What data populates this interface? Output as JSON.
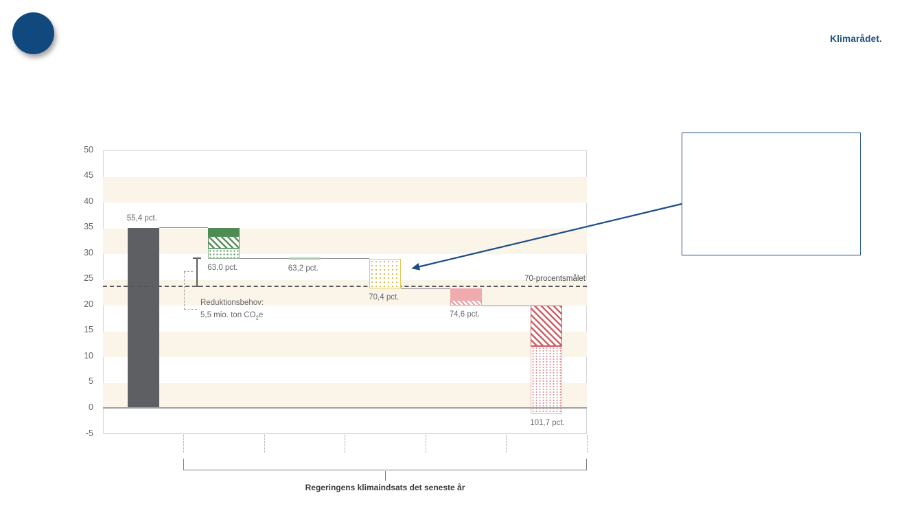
{
  "brand": {
    "wordmark": "Klimarådet.",
    "logo": "circle-icon"
  },
  "colors": {
    "brand_navy": "#1c4d85",
    "logo_fill": "#11497e",
    "band_cream": "#faf4e9",
    "bar_gray": "#5e5f63",
    "green": "#4e8c53",
    "light_green": "#a7cba8",
    "yellow": "#e4c94f",
    "pink": "#f0abae",
    "red": "#c75d64",
    "target_dash": "#565656",
    "zero_line": "#9aa2ac",
    "axis_text": "#63666b",
    "label_text": "#68696b"
  },
  "chart_data": {
    "type": "waterfall",
    "unit": "mio. ton CO2e (y-axis), pct. (labels)",
    "y_axis": {
      "min": -5,
      "max": 50,
      "step": 5,
      "tick_labels": [
        "50",
        "45",
        "40",
        "35",
        "30",
        "25",
        "20",
        "15",
        "10",
        "5",
        "0",
        "-5"
      ]
    },
    "values_pct": [
      55.4,
      63.0,
      63.2,
      70.4,
      74.6,
      101.7
    ],
    "bars": [
      {
        "value_label": "55,4 pct.",
        "label_position": "above",
        "segments": [
          {
            "from": 0,
            "to": 35,
            "style": "solid-gray"
          }
        ]
      },
      {
        "value_label": "63,0 pct.",
        "label_position": "below",
        "segments": [
          {
            "from": 35,
            "to": 33.4,
            "style": "solid-green"
          },
          {
            "from": 33.4,
            "to": 30.9,
            "style": "hatch-green"
          },
          {
            "from": 30.9,
            "to": 29,
            "style": "dots-green"
          }
        ]
      },
      {
        "value_label": "63,2 pct.",
        "label_position": "below",
        "segments": [
          {
            "from": 29.2,
            "to": 28.8,
            "style": "solid-lightgreen"
          }
        ]
      },
      {
        "value_label": "70,4 pct.",
        "label_position": "below",
        "segments": [
          {
            "from": 28.9,
            "to": 23.2,
            "style": "dots-yellow"
          }
        ]
      },
      {
        "value_label": "74,6 pct.",
        "label_position": "below",
        "segments": [
          {
            "from": 23.2,
            "to": 20.9,
            "style": "solid-pink"
          },
          {
            "from": 20.9,
            "to": 19.9,
            "style": "hatch-pink"
          }
        ]
      },
      {
        "value_label": "101,7 pct.",
        "label_position": "below",
        "segments": [
          {
            "from": 19.9,
            "to": 12,
            "style": "hatch-red"
          },
          {
            "from": 12,
            "to": -1.2,
            "style": "dots-red"
          }
        ]
      }
    ],
    "connectors": [
      {
        "level": 35,
        "from_bar": 0,
        "to_bar": 1
      },
      {
        "level": 29,
        "from_bar": 1,
        "to_bar": 3
      },
      {
        "level": 23.2,
        "from_bar": 3,
        "to_bar": 4
      },
      {
        "level": 19.9,
        "from_bar": 4,
        "to_bar": 5
      }
    ],
    "target_line": {
      "value": 23.5,
      "label": "70-procentsmålet"
    },
    "reduction_need": {
      "bracket_from": 29,
      "bracket_to": 23.5,
      "label_line1": "Reduktionsbehov:",
      "label_line2_main": "5,5 mio. ton CO",
      "label_line2_sub": "2",
      "label_line2_tail": "e"
    },
    "x_bracket": {
      "label": "Regeringens klimaindsats det seneste år"
    }
  },
  "callout": {
    "box_text": ""
  }
}
